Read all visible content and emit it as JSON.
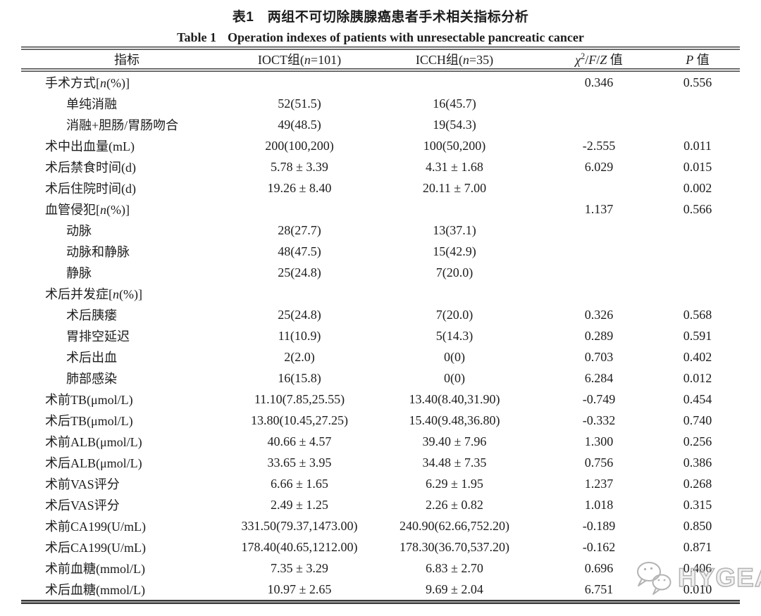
{
  "titles": {
    "cn": "表1　两组不可切除胰腺癌患者手术相关指标分析",
    "en_num": "Table 1",
    "en_text": "Operation indexes of patients with unresectable pancreatic cancer"
  },
  "header": {
    "indicator": [
      {
        "t": "指标"
      }
    ],
    "ioct_group": [
      {
        "t": "IOCT组("
      },
      {
        "t": "n",
        "i": true
      },
      {
        "t": "=101)"
      }
    ],
    "icch_group": [
      {
        "t": "ICCH组("
      },
      {
        "t": "n",
        "i": true
      },
      {
        "t": "=35)"
      }
    ],
    "statistic": [
      {
        "t": "χ",
        "i": true
      },
      {
        "t": "2",
        "sup": true
      },
      {
        "t": "/"
      },
      {
        "t": "F",
        "i": true
      },
      {
        "t": "/"
      },
      {
        "t": "Z",
        "i": true
      },
      {
        "t": " 值"
      }
    ],
    "pvalue": [
      {
        "t": "P",
        "i": true
      },
      {
        "t": " 值"
      }
    ]
  },
  "table": {
    "rows": [
      {
        "indent": 0,
        "label": [
          {
            "t": "手术方式["
          },
          {
            "t": "n",
            "i": true
          },
          {
            "t": "(%)]"
          }
        ],
        "ioct": "",
        "icch": "",
        "stat": "0.346",
        "p": "0.556"
      },
      {
        "indent": 1,
        "label": [
          {
            "t": "单纯消融"
          }
        ],
        "ioct": "52(51.5)",
        "icch": "16(45.7)",
        "stat": "",
        "p": ""
      },
      {
        "indent": 1,
        "label": [
          {
            "t": "消融+胆肠/胃肠吻合"
          }
        ],
        "ioct": "49(48.5)",
        "icch": "19(54.3)",
        "stat": "",
        "p": ""
      },
      {
        "indent": 0,
        "label": [
          {
            "t": "术中出血量(mL)"
          }
        ],
        "ioct": "200(100,200)",
        "icch": "100(50,200)",
        "stat": "-2.555",
        "p": "0.011"
      },
      {
        "indent": 0,
        "label": [
          {
            "t": "术后禁食时间(d)"
          }
        ],
        "ioct": "5.78 ± 3.39",
        "icch": "4.31 ± 1.68",
        "stat": "6.029",
        "p": "0.015"
      },
      {
        "indent": 0,
        "label": [
          {
            "t": "术后住院时间(d)"
          }
        ],
        "ioct": "19.26 ± 8.40",
        "icch": "20.11 ± 7.00",
        "stat": "",
        "p": "0.002"
      },
      {
        "indent": 0,
        "label": [
          {
            "t": "血管侵犯["
          },
          {
            "t": "n",
            "i": true
          },
          {
            "t": "(%)]"
          }
        ],
        "ioct": "",
        "icch": "",
        "stat": "1.137",
        "p": "0.566"
      },
      {
        "indent": 1,
        "label": [
          {
            "t": "动脉"
          }
        ],
        "ioct": "28(27.7)",
        "icch": "13(37.1)",
        "stat": "",
        "p": ""
      },
      {
        "indent": 1,
        "label": [
          {
            "t": "动脉和静脉"
          }
        ],
        "ioct": "48(47.5)",
        "icch": "15(42.9)",
        "stat": "",
        "p": ""
      },
      {
        "indent": 1,
        "label": [
          {
            "t": "静脉"
          }
        ],
        "ioct": "25(24.8)",
        "icch": "7(20.0)",
        "stat": "",
        "p": ""
      },
      {
        "indent": 0,
        "label": [
          {
            "t": "术后并发症["
          },
          {
            "t": "n",
            "i": true
          },
          {
            "t": "(%)]"
          }
        ],
        "ioct": "",
        "icch": "",
        "stat": "",
        "p": ""
      },
      {
        "indent": 1,
        "label": [
          {
            "t": "术后胰瘘"
          }
        ],
        "ioct": "25(24.8)",
        "icch": "7(20.0)",
        "stat": "0.326",
        "p": "0.568"
      },
      {
        "indent": 1,
        "label": [
          {
            "t": "胃排空延迟"
          }
        ],
        "ioct": "11(10.9)",
        "icch": "5(14.3)",
        "stat": "0.289",
        "p": "0.591"
      },
      {
        "indent": 1,
        "label": [
          {
            "t": "术后出血"
          }
        ],
        "ioct": "2(2.0)",
        "icch": "0(0)",
        "stat": "0.703",
        "p": "0.402"
      },
      {
        "indent": 1,
        "label": [
          {
            "t": "肺部感染"
          }
        ],
        "ioct": "16(15.8)",
        "icch": "0(0)",
        "stat": "6.284",
        "p": "0.012"
      },
      {
        "indent": 0,
        "label": [
          {
            "t": "术前TB(μmol/L)"
          }
        ],
        "ioct": "11.10(7.85,25.55)",
        "icch": "13.40(8.40,31.90)",
        "stat": "-0.749",
        "p": "0.454"
      },
      {
        "indent": 0,
        "label": [
          {
            "t": "术后TB(μmol/L)"
          }
        ],
        "ioct": "13.80(10.45,27.25)",
        "icch": "15.40(9.48,36.80)",
        "stat": "-0.332",
        "p": "0.740"
      },
      {
        "indent": 0,
        "label": [
          {
            "t": "术前ALB(μmol/L)"
          }
        ],
        "ioct": "40.66 ± 4.57",
        "icch": "39.40 ± 7.96",
        "stat": "1.300",
        "p": "0.256"
      },
      {
        "indent": 0,
        "label": [
          {
            "t": "术后ALB(μmol/L)"
          }
        ],
        "ioct": "33.65 ± 3.95",
        "icch": "34.48 ± 7.35",
        "stat": "0.756",
        "p": "0.386"
      },
      {
        "indent": 0,
        "label": [
          {
            "t": "术前VAS评分"
          }
        ],
        "ioct": "6.66 ± 1.65",
        "icch": "6.29 ± 1.95",
        "stat": "1.237",
        "p": "0.268"
      },
      {
        "indent": 0,
        "label": [
          {
            "t": "术后VAS评分"
          }
        ],
        "ioct": "2.49 ± 1.25",
        "icch": "2.26 ± 0.82",
        "stat": "1.018",
        "p": "0.315"
      },
      {
        "indent": 0,
        "label": [
          {
            "t": "术前CA199(U/mL)"
          }
        ],
        "ioct": "331.50(79.37,1473.00)",
        "icch": "240.90(62.66,752.20)",
        "stat": "-0.189",
        "p": "0.850"
      },
      {
        "indent": 0,
        "label": [
          {
            "t": "术后CA199(U/mL)"
          }
        ],
        "ioct": "178.40(40.65,1212.00)",
        "icch": "178.30(36.70,537.20)",
        "stat": "-0.162",
        "p": "0.871"
      },
      {
        "indent": 0,
        "label": [
          {
            "t": "术前血糖(mmol/L)"
          }
        ],
        "ioct": "7.35 ± 3.29",
        "icch": "6.83 ± 2.70",
        "stat": "0.696",
        "p": "0.406"
      },
      {
        "indent": 0,
        "label": [
          {
            "t": "术后血糖(mmol/L)"
          }
        ],
        "ioct": "10.97 ± 2.65",
        "icch": "9.69 ± 2.04",
        "stat": "6.751",
        "p": "0.010"
      }
    ]
  },
  "watermark": {
    "text": "HYGEA",
    "icon": "wechat-bubbles-icon",
    "color": "#b3b3b3"
  },
  "colors": {
    "text": "#1d1d1d",
    "rule": "#474747",
    "background": "#ffffff"
  }
}
